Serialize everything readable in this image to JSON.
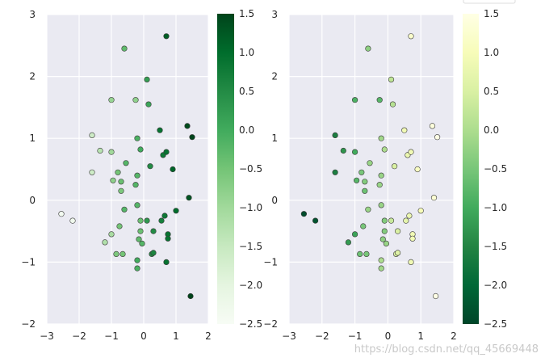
{
  "chart_data": [
    {
      "type": "scatter",
      "colormap": "Greens",
      "colormap_reversed": false,
      "xlim": [
        -3,
        2
      ],
      "ylim": [
        -2,
        3
      ],
      "xticks": [
        "−3",
        "−2",
        "−1",
        "0",
        "1",
        "2"
      ],
      "yticks": [
        "−2",
        "−1",
        "0",
        "1",
        "2",
        "3"
      ],
      "clim": [
        -2.5,
        1.5
      ],
      "colorbar_ticks": [
        "1.5",
        "1.0",
        "0.5",
        "0.0",
        "−0.5",
        "−1.0",
        "−1.5",
        "−2.0",
        "−2.5"
      ],
      "grid": true,
      "points": [
        {
          "x": -2.55,
          "y": -0.22,
          "c": -2.4
        },
        {
          "x": -2.2,
          "y": -0.33,
          "c": -2.3
        },
        {
          "x": -1.6,
          "y": 1.05,
          "c": -1.6
        },
        {
          "x": -1.35,
          "y": 0.8,
          "c": -1.3
        },
        {
          "x": -1.6,
          "y": 0.45,
          "c": -1.6
        },
        {
          "x": -1.2,
          "y": -0.68,
          "c": -1.2
        },
        {
          "x": -1.0,
          "y": -0.55,
          "c": -1.1
        },
        {
          "x": -0.85,
          "y": -0.87,
          "c": -0.6
        },
        {
          "x": -0.65,
          "y": -0.87,
          "c": -0.5
        },
        {
          "x": -1.0,
          "y": 0.78,
          "c": -1.0
        },
        {
          "x": -0.95,
          "y": 0.32,
          "c": -0.8
        },
        {
          "x": -0.8,
          "y": 0.45,
          "c": -0.5
        },
        {
          "x": -0.7,
          "y": 0.3,
          "c": -0.4
        },
        {
          "x": -0.7,
          "y": 0.15,
          "c": -0.6
        },
        {
          "x": -0.75,
          "y": -0.42,
          "c": -0.5
        },
        {
          "x": -0.55,
          "y": 0.6,
          "c": -0.2
        },
        {
          "x": -0.6,
          "y": -0.15,
          "c": -0.2
        },
        {
          "x": -0.6,
          "y": 2.45,
          "c": -0.3
        },
        {
          "x": -1.0,
          "y": 1.62,
          "c": -0.9
        },
        {
          "x": -0.25,
          "y": 1.62,
          "c": -0.8
        },
        {
          "x": -0.2,
          "y": 1.0,
          "c": -0.1
        },
        {
          "x": -0.2,
          "y": 0.4,
          "c": -0.2
        },
        {
          "x": -0.25,
          "y": 0.25,
          "c": -0.2
        },
        {
          "x": -0.1,
          "y": 0.82,
          "c": 0.0
        },
        {
          "x": 0.1,
          "y": 1.95,
          "c": 0.2
        },
        {
          "x": 0.15,
          "y": 1.55,
          "c": 0.1
        },
        {
          "x": 0.2,
          "y": 0.55,
          "c": 0.5
        },
        {
          "x": -0.2,
          "y": -0.08,
          "c": -0.2
        },
        {
          "x": -0.1,
          "y": -0.33,
          "c": -0.4
        },
        {
          "x": -0.1,
          "y": -0.5,
          "c": -0.4
        },
        {
          "x": -0.15,
          "y": -0.63,
          "c": -0.3
        },
        {
          "x": -0.05,
          "y": -0.7,
          "c": -0.2
        },
        {
          "x": -0.2,
          "y": -0.97,
          "c": 0.0
        },
        {
          "x": -0.2,
          "y": -1.1,
          "c": -0.1
        },
        {
          "x": 0.1,
          "y": -0.33,
          "c": 0.3
        },
        {
          "x": 0.3,
          "y": -0.5,
          "c": 0.5
        },
        {
          "x": 0.25,
          "y": -0.87,
          "c": 0.5
        },
        {
          "x": 0.3,
          "y": -0.85,
          "c": 0.6
        },
        {
          "x": 0.55,
          "y": -0.33,
          "c": 0.7
        },
        {
          "x": 0.65,
          "y": -0.25,
          "c": 0.8
        },
        {
          "x": 0.75,
          "y": -0.55,
          "c": 0.9
        },
        {
          "x": 0.75,
          "y": -0.62,
          "c": 0.9
        },
        {
          "x": 0.7,
          "y": -1.0,
          "c": 0.9
        },
        {
          "x": 0.5,
          "y": 1.13,
          "c": 0.9
        },
        {
          "x": 0.6,
          "y": 0.73,
          "c": 0.8
        },
        {
          "x": 0.7,
          "y": 0.78,
          "c": 0.9
        },
        {
          "x": 0.9,
          "y": 0.5,
          "c": 1.1
        },
        {
          "x": 1.0,
          "y": -0.17,
          "c": 1.0
        },
        {
          "x": 0.7,
          "y": 2.65,
          "c": 1.2
        },
        {
          "x": 1.35,
          "y": 1.2,
          "c": 1.4
        },
        {
          "x": 1.5,
          "y": 1.02,
          "c": 1.5
        },
        {
          "x": 1.4,
          "y": 0.04,
          "c": 1.3
        },
        {
          "x": 1.45,
          "y": -1.55,
          "c": 1.5
        }
      ]
    },
    {
      "type": "scatter",
      "colormap": "YlGn",
      "colormap_reversed": true,
      "xlim": [
        -3,
        2
      ],
      "ylim": [
        -2,
        3
      ],
      "xticks": [
        "−3",
        "−2",
        "−1",
        "0",
        "1",
        "2"
      ],
      "yticks": [
        "−2",
        "−1",
        "0",
        "1",
        "2",
        "3"
      ],
      "clim": [
        -2.5,
        1.5
      ],
      "colorbar_ticks": [
        "1.5",
        "1.0",
        "0.5",
        "0.0",
        "−0.5",
        "−1.0",
        "−1.5",
        "−2.0",
        "−2.5"
      ],
      "grid": true,
      "points": "same as chart 1"
    }
  ],
  "watermark": "https://blog.csdn.net/qq_45669448",
  "colors": {
    "axes_bg": "#eaeaf2",
    "grid": "#ffffff",
    "tick_text": "#262626",
    "marker_edge": "#3a3a3a"
  }
}
